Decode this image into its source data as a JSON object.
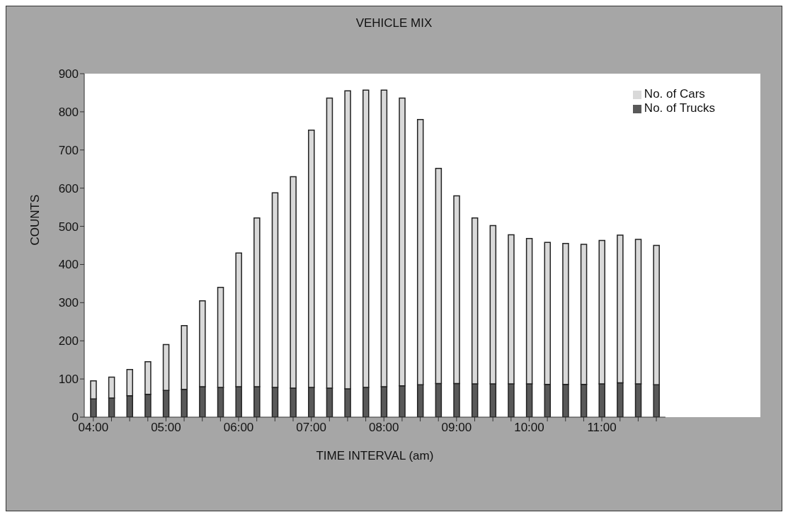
{
  "chart_data": {
    "type": "bar",
    "title": "VEHICLE MIX",
    "xlabel": "TIME INTERVAL (am)",
    "ylabel": "COUNTS",
    "categories": [
      "04:00",
      null,
      null,
      null,
      "05:00",
      null,
      null,
      null,
      "06:00",
      null,
      null,
      null,
      "07:00",
      null,
      null,
      null,
      "08:00",
      null,
      null,
      null,
      "09:00",
      null,
      null,
      null,
      "10:00",
      null,
      null,
      null,
      "11:00",
      null,
      null,
      null
    ],
    "stacked": true,
    "series": [
      {
        "name": "No. of Trucks",
        "color": "#595959",
        "values": [
          48,
          50,
          56,
          60,
          70,
          73,
          80,
          78,
          80,
          80,
          78,
          76,
          78,
          76,
          74,
          78,
          80,
          82,
          85,
          88,
          88,
          87,
          87,
          87,
          87,
          86,
          86,
          86,
          87,
          90,
          87,
          85
        ]
      },
      {
        "name": "No. of Cars",
        "color": "#d9d9d9",
        "values": [
          47,
          55,
          69,
          85,
          120,
          167,
          225,
          262,
          350,
          442,
          510,
          554,
          674,
          760,
          781,
          779,
          777,
          754,
          695,
          564,
          492,
          435,
          415,
          391,
          381,
          372,
          369,
          367,
          376,
          387,
          379,
          365
        ]
      }
    ],
    "ylim": [
      0,
      900
    ],
    "yticks": [
      0,
      100,
      200,
      300,
      400,
      500,
      600,
      700,
      800,
      900
    ],
    "grid": false,
    "legend": "top right"
  }
}
